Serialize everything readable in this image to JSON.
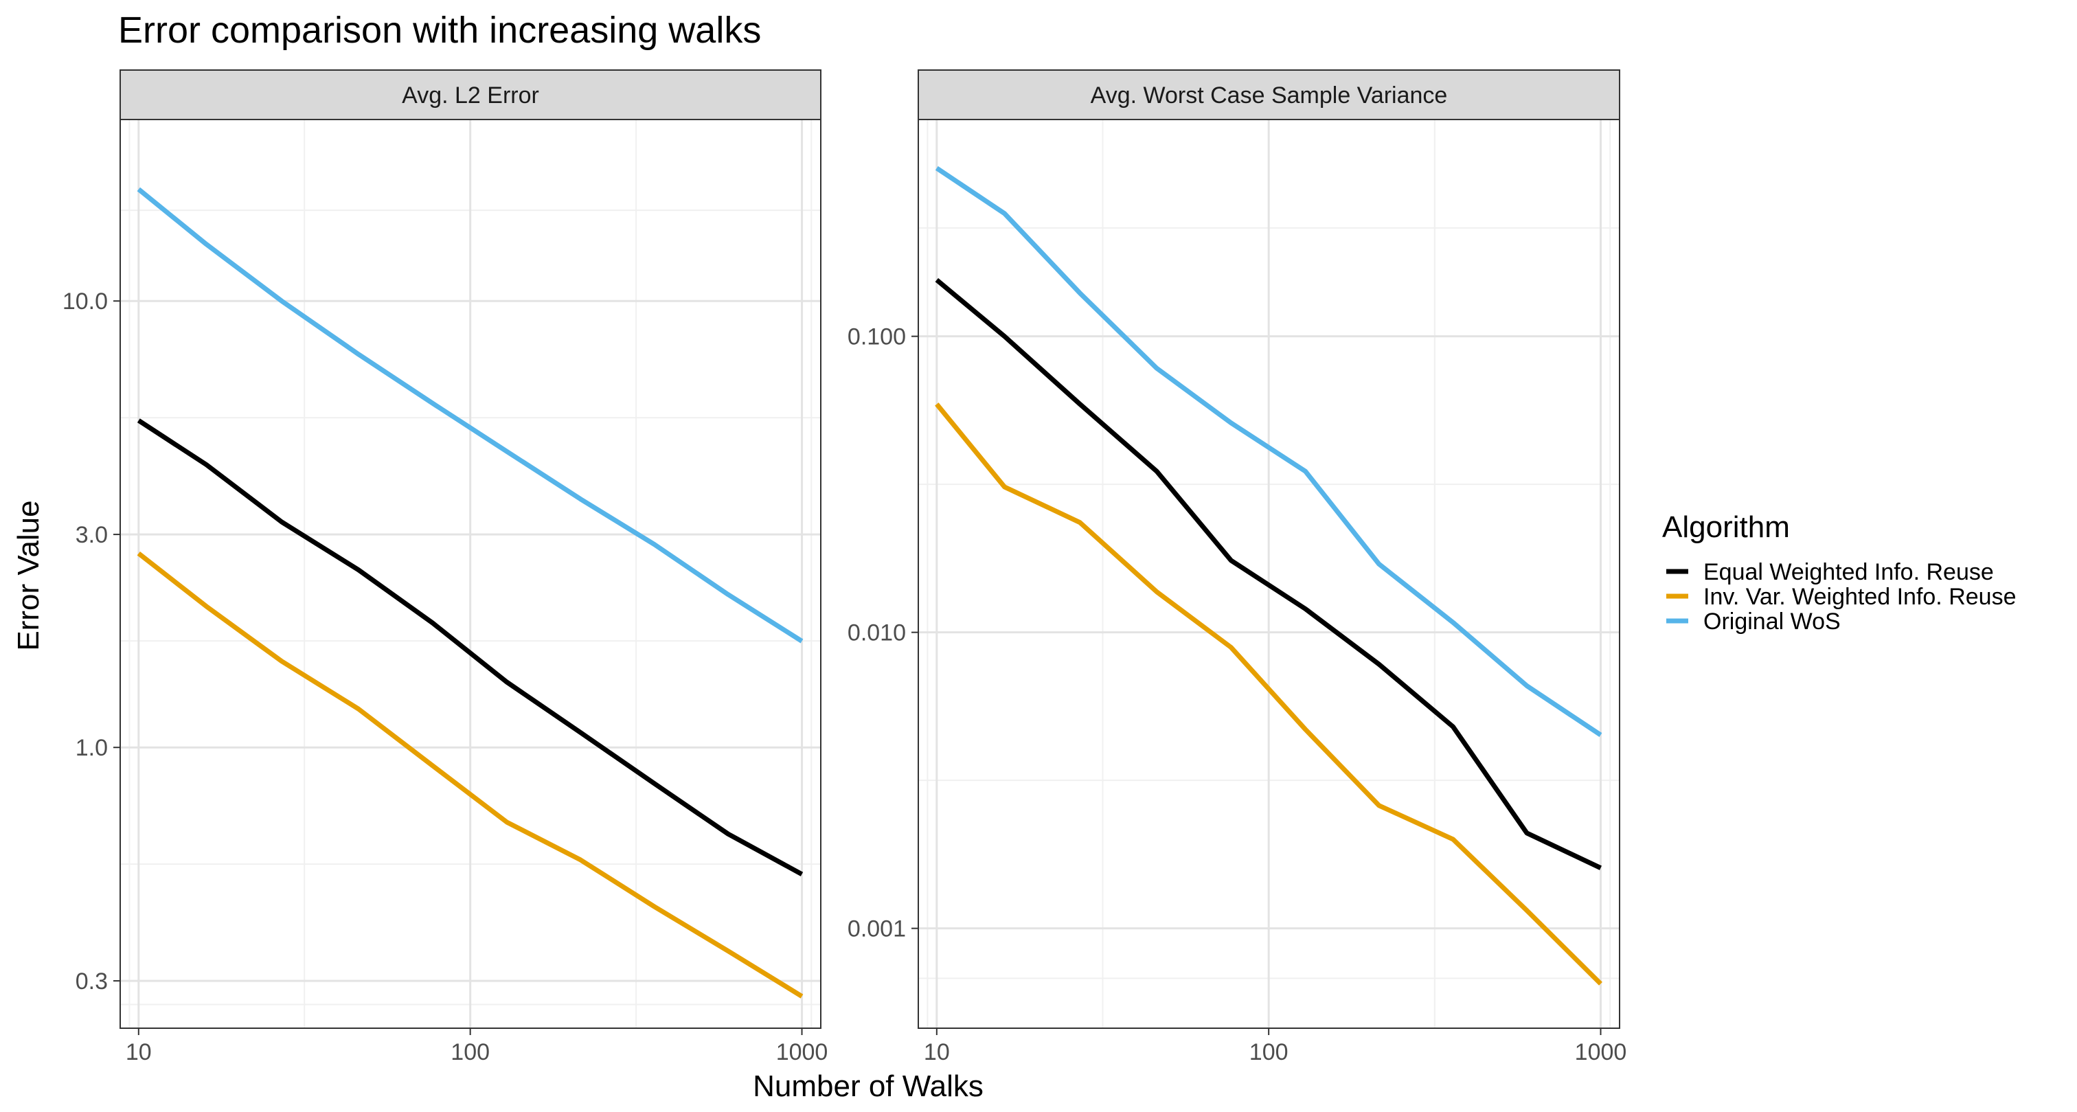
{
  "title": "Error comparison with increasing walks",
  "xlabel": "Number of Walks",
  "ylabel": "Error Value",
  "legend": {
    "title": "Algorithm",
    "entries": [
      {
        "label": "Equal Weighted Info. Reuse",
        "color": "#000000"
      },
      {
        "label": "Inv. Var. Weighted Info. Reuse",
        "color": "#E69F00"
      },
      {
        "label": "Original WoS",
        "color": "#56B4E9"
      }
    ]
  },
  "chart_data": [
    {
      "type": "line",
      "panel": "Avg. L2 Error",
      "xscale": "log10",
      "yscale": "log10",
      "xlim": [
        8.8,
        1140
      ],
      "ylim": [
        0.235,
        25.5
      ],
      "xticks": [
        {
          "value": 10,
          "label": "10"
        },
        {
          "value": 100,
          "label": "100"
        },
        {
          "value": 1000,
          "label": "1000"
        }
      ],
      "yticks": [
        {
          "value": 0.3,
          "label": "0.3"
        },
        {
          "value": 1,
          "label": "1.0"
        },
        {
          "value": 3,
          "label": "3.0"
        },
        {
          "value": 10,
          "label": "10.0"
        }
      ],
      "x": [
        10,
        16,
        27,
        46,
        77,
        129,
        215,
        359,
        599,
        1000
      ],
      "series": [
        {
          "name": "Equal Weighted Info. Reuse",
          "color": "#000000",
          "values": [
            5.4,
            4.3,
            3.2,
            2.5,
            1.9,
            1.4,
            1.08,
            0.83,
            0.64,
            0.52
          ]
        },
        {
          "name": "Inv. Var. Weighted Info. Reuse",
          "color": "#E69F00",
          "values": [
            2.72,
            2.07,
            1.56,
            1.22,
            0.91,
            0.68,
            0.56,
            0.44,
            0.35,
            0.277
          ]
        },
        {
          "name": "Original WoS",
          "color": "#56B4E9",
          "values": [
            17.8,
            13.4,
            10.0,
            7.6,
            5.9,
            4.6,
            3.6,
            2.85,
            2.2,
            1.73
          ]
        }
      ]
    },
    {
      "type": "line",
      "panel": "Avg. Worst Case Sample Variance",
      "xscale": "log10",
      "yscale": "log10",
      "xlim": [
        8.8,
        1140
      ],
      "ylim": [
        0.00046,
        0.54
      ],
      "xticks": [
        {
          "value": 10,
          "label": "10"
        },
        {
          "value": 100,
          "label": "100"
        },
        {
          "value": 1000,
          "label": "1000"
        }
      ],
      "yticks": [
        {
          "value": 0.001,
          "label": "0.001"
        },
        {
          "value": 0.01,
          "label": "0.010"
        },
        {
          "value": 0.1,
          "label": "0.100"
        }
      ],
      "x": [
        10,
        16,
        27,
        46,
        77,
        129,
        215,
        359,
        599,
        1000
      ],
      "series": [
        {
          "name": "Equal Weighted Info. Reuse",
          "color": "#000000",
          "values": [
            0.155,
            0.1,
            0.059,
            0.035,
            0.0175,
            0.012,
            0.0078,
            0.0048,
            0.0021,
            0.0016
          ]
        },
        {
          "name": "Inv. Var. Weighted Info. Reuse",
          "color": "#E69F00",
          "values": [
            0.059,
            0.031,
            0.0235,
            0.0137,
            0.0089,
            0.0047,
            0.0026,
            0.002,
            0.00115,
            0.00065
          ]
        },
        {
          "name": "Original WoS",
          "color": "#56B4E9",
          "values": [
            0.37,
            0.26,
            0.14,
            0.078,
            0.051,
            0.035,
            0.017,
            0.0108,
            0.0066,
            0.0045
          ]
        }
      ]
    }
  ]
}
